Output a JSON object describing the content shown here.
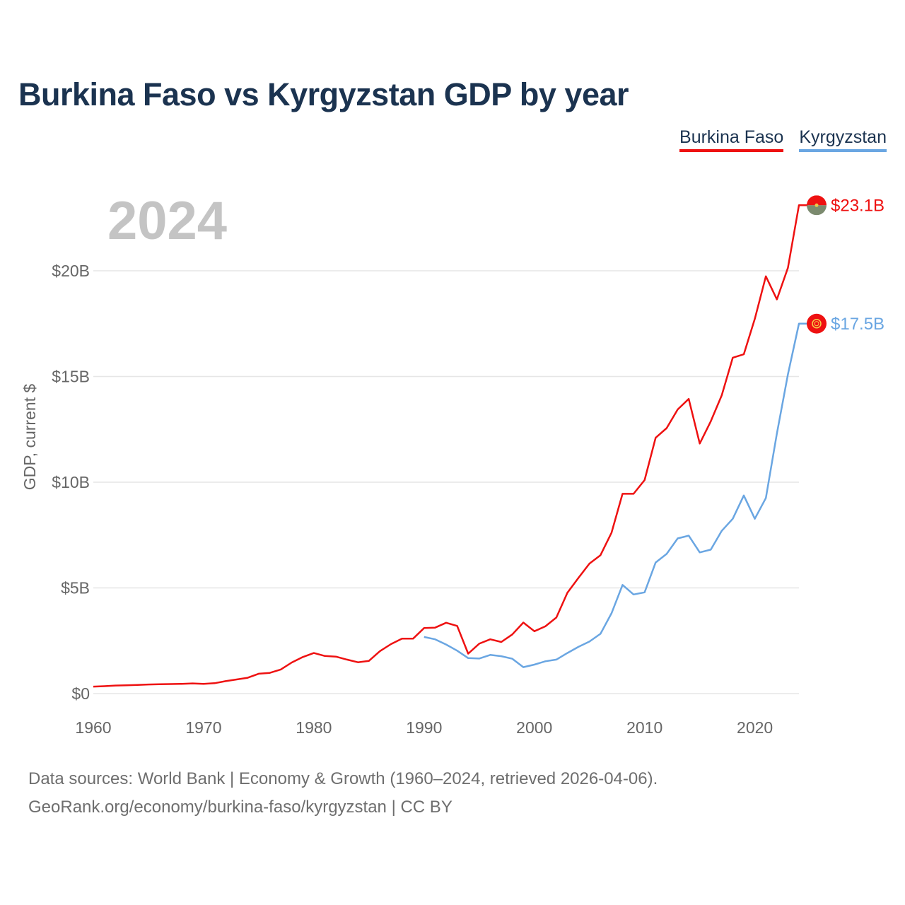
{
  "title": "Burkina Faso vs Kyrgyzstan GDP by year",
  "legend": [
    {
      "label": "Burkina Faso",
      "color": "#ee1111"
    },
    {
      "label": "Kyrgyzstan",
      "color": "#6aa6e2"
    }
  ],
  "footer": {
    "line1": "Data sources: World Bank | Economy & Growth (1960–2024, retrieved 2026-04-06).",
    "line2": "GeoRank.org/economy/burkina-faso/kyrgyzstan | CC BY"
  },
  "chart_data": {
    "type": "line",
    "title": "Burkina Faso vs Kyrgyzstan GDP by year",
    "ylabel": "GDP, current $",
    "xlabel": "",
    "year_overlay": "2024",
    "xlim": [
      1960,
      2024
    ],
    "ylim": [
      0,
      25
    ],
    "y_unit": "billion USD",
    "x_ticks": [
      1960,
      1970,
      1980,
      1990,
      2000,
      2010,
      2020
    ],
    "y_ticks": [
      {
        "value": 0,
        "label": "$0"
      },
      {
        "value": 5,
        "label": "$5B"
      },
      {
        "value": 10,
        "label": "$10B"
      },
      {
        "value": 15,
        "label": "$15B"
      },
      {
        "value": 20,
        "label": "$20B"
      }
    ],
    "grid": true,
    "legend_position": "top-right",
    "series": [
      {
        "name": "Burkina Faso",
        "color": "#ee1111",
        "end_label": "$23.1B",
        "flag_icon": "burkina-faso-flag-icon",
        "x": [
          1960,
          1961,
          1962,
          1963,
          1964,
          1965,
          1966,
          1967,
          1968,
          1969,
          1970,
          1971,
          1972,
          1973,
          1974,
          1975,
          1976,
          1977,
          1978,
          1979,
          1980,
          1981,
          1982,
          1983,
          1984,
          1985,
          1986,
          1987,
          1988,
          1989,
          1990,
          1991,
          1992,
          1993,
          1994,
          1995,
          1996,
          1997,
          1998,
          1999,
          2000,
          2001,
          2002,
          2003,
          2004,
          2005,
          2006,
          2007,
          2008,
          2009,
          2010,
          2011,
          2012,
          2013,
          2014,
          2015,
          2016,
          2017,
          2018,
          2019,
          2020,
          2021,
          2022,
          2023,
          2024
        ],
        "values": [
          0.33,
          0.35,
          0.38,
          0.39,
          0.41,
          0.43,
          0.44,
          0.45,
          0.46,
          0.48,
          0.46,
          0.49,
          0.59,
          0.67,
          0.75,
          0.94,
          0.98,
          1.14,
          1.47,
          1.73,
          1.92,
          1.78,
          1.75,
          1.61,
          1.48,
          1.55,
          2.01,
          2.34,
          2.6,
          2.6,
          3.1,
          3.12,
          3.35,
          3.2,
          1.89,
          2.36,
          2.57,
          2.44,
          2.8,
          3.36,
          2.95,
          3.18,
          3.6,
          4.77,
          5.47,
          6.15,
          6.55,
          7.61,
          9.45,
          9.45,
          10.1,
          12.1,
          12.56,
          13.44,
          13.94,
          11.83,
          12.88,
          14.11,
          15.89,
          16.05,
          17.73,
          19.74,
          18.65,
          20.14,
          23.1
        ]
      },
      {
        "name": "Kyrgyzstan",
        "color": "#6aa6e2",
        "end_label": "$17.5B",
        "flag_icon": "kyrgyzstan-flag-icon",
        "x": [
          1990,
          1991,
          1992,
          1993,
          1994,
          1995,
          1996,
          1997,
          1998,
          1999,
          2000,
          2001,
          2002,
          2003,
          2004,
          2005,
          2006,
          2007,
          2008,
          2009,
          2010,
          2011,
          2012,
          2013,
          2014,
          2015,
          2016,
          2017,
          2018,
          2019,
          2020,
          2021,
          2022,
          2023,
          2024
        ],
        "values": [
          2.68,
          2.57,
          2.32,
          2.03,
          1.68,
          1.66,
          1.83,
          1.77,
          1.65,
          1.25,
          1.37,
          1.53,
          1.61,
          1.92,
          2.21,
          2.46,
          2.83,
          3.8,
          5.14,
          4.69,
          4.79,
          6.2,
          6.61,
          7.34,
          7.47,
          6.68,
          6.81,
          7.7,
          8.27,
          9.37,
          8.27,
          9.25,
          12.3,
          15.1,
          17.5
        ]
      }
    ]
  }
}
